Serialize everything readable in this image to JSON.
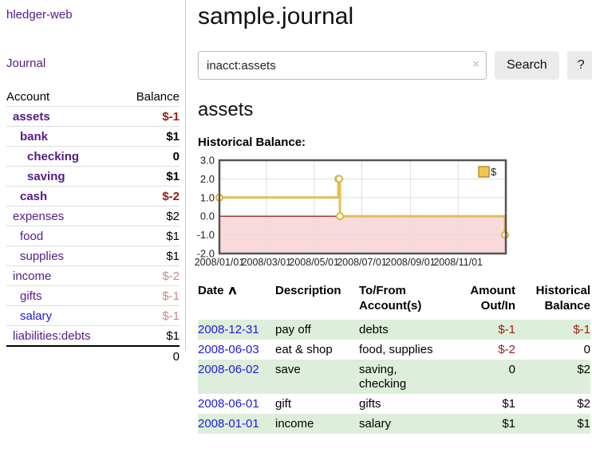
{
  "app": {
    "brand": "hledger-web",
    "nav_journal": "Journal"
  },
  "sidebar": {
    "accounts_header": {
      "account": "Account",
      "balance": "Balance"
    },
    "accounts": [
      {
        "name": "assets",
        "level": 0,
        "bold": true,
        "balance": "$-1",
        "balance_class": "neg-strong",
        "link_color": "purple"
      },
      {
        "name": "bank",
        "level": 1,
        "bold": true,
        "balance": "$1",
        "balance_class": "",
        "link_color": "purple"
      },
      {
        "name": "checking",
        "level": 2,
        "bold": true,
        "balance": "0",
        "balance_class": "",
        "link_color": "purple"
      },
      {
        "name": "saving",
        "level": 2,
        "bold": true,
        "balance": "$1",
        "balance_class": "",
        "link_color": "purple"
      },
      {
        "name": "cash",
        "level": 1,
        "bold": true,
        "balance": "$-2",
        "balance_class": "neg-strong",
        "link_color": "purple"
      },
      {
        "name": "expenses",
        "level": 0,
        "bold": false,
        "balance": "$2",
        "balance_class": "",
        "link_color": "purple"
      },
      {
        "name": "food",
        "level": 1,
        "bold": false,
        "balance": "$1",
        "balance_class": "",
        "link_color": "purple"
      },
      {
        "name": "supplies",
        "level": 1,
        "bold": false,
        "balance": "$1",
        "balance_class": "",
        "link_color": "purple"
      },
      {
        "name": "income",
        "level": 0,
        "bold": false,
        "balance": "$-2",
        "balance_class": "neg-soft",
        "link_color": "purple"
      },
      {
        "name": "gifts",
        "level": 1,
        "bold": false,
        "balance": "$-1",
        "balance_class": "neg-soft",
        "link_color": "purple"
      },
      {
        "name": "salary",
        "level": 1,
        "bold": false,
        "balance": "$-1",
        "balance_class": "neg-soft",
        "link_color": "blue"
      },
      {
        "name": "liabilities:debts",
        "level": 0,
        "bold": false,
        "balance": "$1",
        "balance_class": "",
        "link_color": "purple"
      }
    ],
    "total": "0"
  },
  "header": {
    "title": "sample.journal"
  },
  "search": {
    "value": "inacct:assets",
    "clear_icon": "×",
    "button_label": "Search",
    "help_label": "?"
  },
  "account_page": {
    "title": "assets",
    "chart_label": "Historical Balance:"
  },
  "chart_data": {
    "type": "line",
    "title": "Historical Balance",
    "step": true,
    "x_range": [
      "2008-01-01",
      "2009-01-01"
    ],
    "x_ticks": [
      "2008/01/01",
      "2008/03/01",
      "2008/05/01",
      "2008/07/01",
      "2008/09/01",
      "2008/11/01"
    ],
    "y_ticks": [
      "3.0",
      "2.0",
      "1.0",
      "0.0",
      "-1.0",
      "-2.0"
    ],
    "ylim": [
      -2,
      3
    ],
    "points": [
      {
        "date": "2008-01-01",
        "value": 1
      },
      {
        "date": "2008-06-01",
        "value": 2
      },
      {
        "date": "2008-06-02",
        "value": 2
      },
      {
        "date": "2008-06-03",
        "value": 0
      },
      {
        "date": "2008-12-31",
        "value": -1
      }
    ],
    "legend": [
      {
        "label": "$",
        "color": "#ecc84e",
        "border": "#b8912c"
      }
    ],
    "line_color": "#e2bf53",
    "marker_stroke": "#dcb440",
    "zero_line_color": "#8b0000",
    "negative_region_color": "#f9dada",
    "grid": true
  },
  "transactions": {
    "headers": {
      "date": "Date",
      "sort_icon": "∧",
      "description": "Description",
      "accounts": "To/From Account(s)",
      "amount": "Amount Out/In",
      "balance": "Historical Balance"
    },
    "rows": [
      {
        "date": "2008-12-31",
        "description": "pay off",
        "accounts": "debts",
        "amount": "$-1",
        "amount_class": "neg-strong",
        "balance": "$-1",
        "balance_class": "neg-strong"
      },
      {
        "date": "2008-06-03",
        "description": "eat & shop",
        "accounts": "food, supplies",
        "amount": "$-2",
        "amount_class": "neg-strong",
        "balance": "0",
        "balance_class": ""
      },
      {
        "date": "2008-06-02",
        "description": "save",
        "accounts": "saving, checking",
        "amount": "0",
        "amount_class": "",
        "balance": "$2",
        "balance_class": ""
      },
      {
        "date": "2008-06-01",
        "description": "gift",
        "accounts": "gifts",
        "amount": "$1",
        "amount_class": "",
        "balance": "$2",
        "balance_class": ""
      },
      {
        "date": "2008-01-01",
        "description": "income",
        "accounts": "salary",
        "amount": "$1",
        "amount_class": "",
        "balance": "$1",
        "balance_class": ""
      }
    ]
  }
}
